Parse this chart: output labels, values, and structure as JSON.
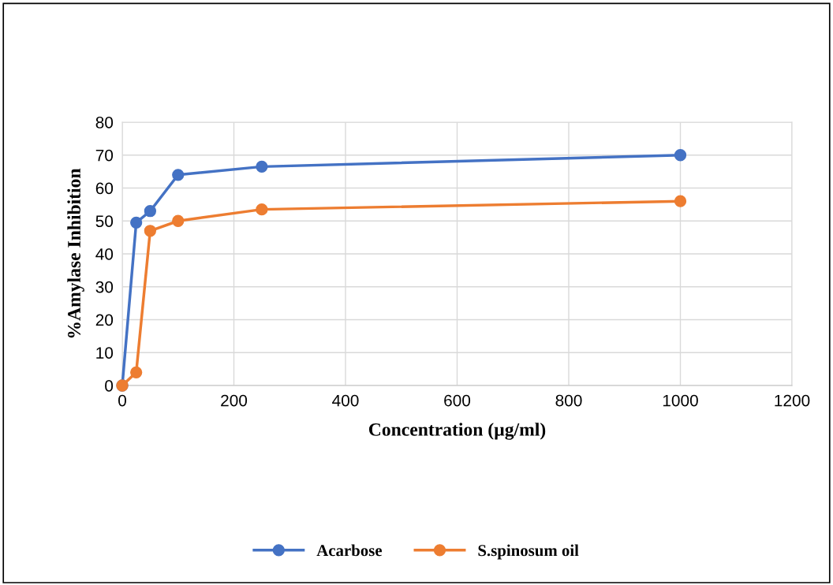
{
  "chart_data": {
    "type": "line",
    "xlabel": "Concentration (µg/ml)",
    "ylabel": "%Amylase Inhibition",
    "xlim": [
      0,
      1200
    ],
    "xticks": [
      0,
      200,
      400,
      600,
      800,
      1000,
      1200
    ],
    "ylim": [
      0,
      80
    ],
    "yticks": [
      0,
      10,
      20,
      30,
      40,
      50,
      60,
      70,
      80
    ],
    "grid": true,
    "legend": "bottom",
    "marker": "circle",
    "line_style": "solid",
    "series": [
      {
        "name": "Acarbose",
        "color": "#4472c4",
        "x": [
          0,
          25,
          50,
          100,
          250,
          1000
        ],
        "values": [
          0,
          49.5,
          53,
          64,
          66.5,
          70
        ]
      },
      {
        "name": "S.spinosum oil",
        "color": "#ed7d31",
        "x": [
          0,
          25,
          50,
          100,
          250,
          1000
        ],
        "values": [
          0,
          4,
          47,
          50,
          53.5,
          56
        ]
      }
    ]
  }
}
